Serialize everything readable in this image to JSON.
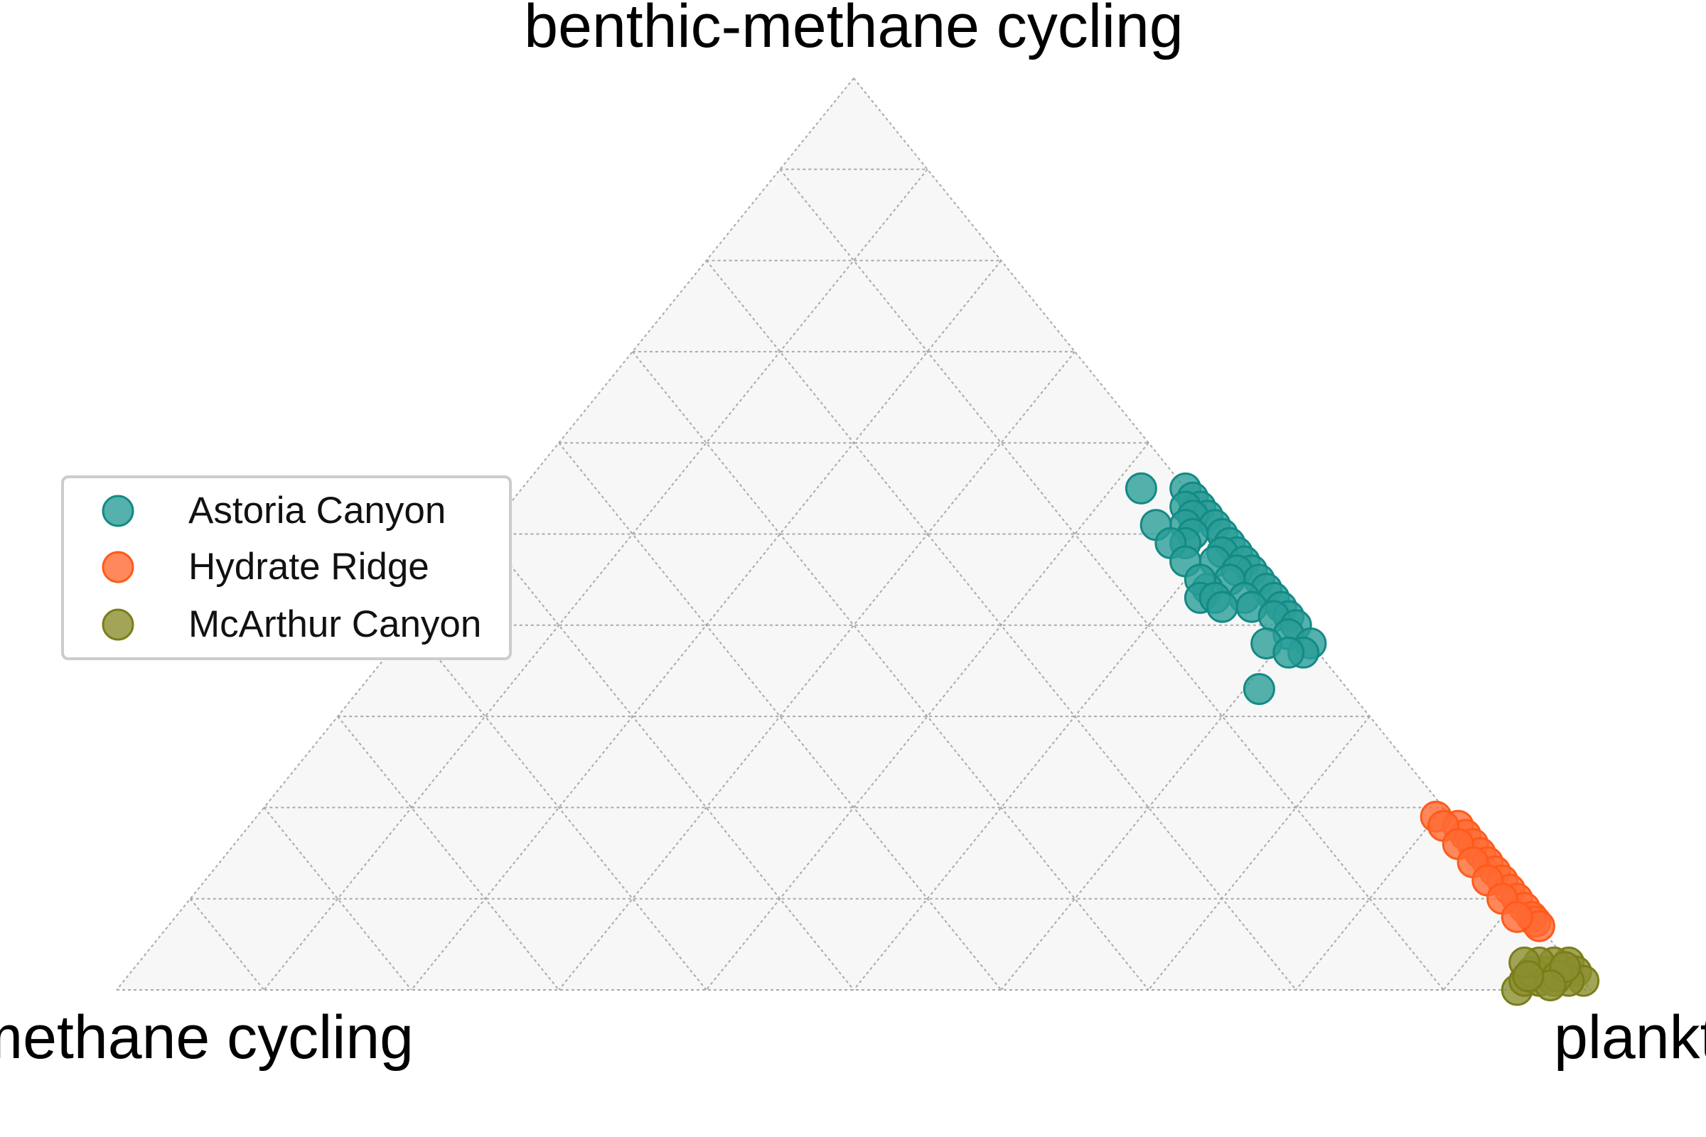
{
  "chart_data": {
    "type": "scatter",
    "subtype": "ternary",
    "vertices": {
      "top": "benthic-methane cycling",
      "left": "methane cycling",
      "right": "planktonic"
    },
    "grid": true,
    "grid_step": 0.1,
    "legend_placement": "center-left",
    "series": [
      {
        "name": "Astoria Canyon",
        "color": "#2a9d97",
        "edge_color": "#138a85",
        "points": [
          {
            "top": 0.55,
            "left": 0.03,
            "right": 0.42
          },
          {
            "top": 0.55,
            "left": 0.0,
            "right": 0.45
          },
          {
            "top": 0.54,
            "left": 0.0,
            "right": 0.46
          },
          {
            "top": 0.53,
            "left": 0.0,
            "right": 0.47
          },
          {
            "top": 0.53,
            "left": 0.01,
            "right": 0.46
          },
          {
            "top": 0.52,
            "left": 0.0,
            "right": 0.48
          },
          {
            "top": 0.52,
            "left": 0.01,
            "right": 0.47
          },
          {
            "top": 0.51,
            "left": 0.0,
            "right": 0.49
          },
          {
            "top": 0.51,
            "left": 0.02,
            "right": 0.47
          },
          {
            "top": 0.5,
            "left": 0.0,
            "right": 0.5
          },
          {
            "top": 0.5,
            "left": 0.02,
            "right": 0.48
          },
          {
            "top": 0.49,
            "left": 0.0,
            "right": 0.51
          },
          {
            "top": 0.49,
            "left": 0.03,
            "right": 0.48
          },
          {
            "top": 0.48,
            "left": 0.0,
            "right": 0.52
          },
          {
            "top": 0.48,
            "left": 0.01,
            "right": 0.51
          },
          {
            "top": 0.47,
            "left": 0.0,
            "right": 0.53
          },
          {
            "top": 0.47,
            "left": 0.02,
            "right": 0.51
          },
          {
            "top": 0.46,
            "left": 0.0,
            "right": 0.54
          },
          {
            "top": 0.46,
            "left": 0.01,
            "right": 0.53
          },
          {
            "top": 0.45,
            "left": 0.0,
            "right": 0.55
          },
          {
            "top": 0.45,
            "left": 0.02,
            "right": 0.53
          },
          {
            "top": 0.44,
            "left": 0.0,
            "right": 0.56
          },
          {
            "top": 0.44,
            "left": 0.04,
            "right": 0.52
          },
          {
            "top": 0.43,
            "left": 0.0,
            "right": 0.57
          },
          {
            "top": 0.43,
            "left": 0.02,
            "right": 0.55
          },
          {
            "top": 0.42,
            "left": 0.0,
            "right": 0.58
          },
          {
            "top": 0.42,
            "left": 0.02,
            "right": 0.56
          },
          {
            "top": 0.41,
            "left": 0.0,
            "right": 0.59
          },
          {
            "top": 0.41,
            "left": 0.01,
            "right": 0.58
          },
          {
            "top": 0.4,
            "left": 0.0,
            "right": 0.6
          },
          {
            "top": 0.39,
            "left": 0.01,
            "right": 0.6
          },
          {
            "top": 0.38,
            "left": 0.0,
            "right": 0.62
          },
          {
            "top": 0.37,
            "left": 0.01,
            "right": 0.62
          },
          {
            "top": 0.51,
            "left": 0.04,
            "right": 0.45
          },
          {
            "top": 0.49,
            "left": 0.04,
            "right": 0.47
          },
          {
            "top": 0.47,
            "left": 0.04,
            "right": 0.49
          },
          {
            "top": 0.45,
            "left": 0.04,
            "right": 0.51
          },
          {
            "top": 0.43,
            "left": 0.05,
            "right": 0.52
          },
          {
            "top": 0.43,
            "left": 0.04,
            "right": 0.53
          },
          {
            "top": 0.42,
            "left": 0.04,
            "right": 0.54
          },
          {
            "top": 0.38,
            "left": 0.03,
            "right": 0.59
          },
          {
            "top": 0.37,
            "left": 0.02,
            "right": 0.61
          },
          {
            "top": 0.33,
            "left": 0.06,
            "right": 0.61
          }
        ]
      },
      {
        "name": "Hydrate Ridge",
        "color": "#ff6a33",
        "edge_color": "#ff5a1a",
        "points": [
          {
            "top": 0.19,
            "left": 0.01,
            "right": 0.8
          },
          {
            "top": 0.18,
            "left": 0.0,
            "right": 0.82
          },
          {
            "top": 0.17,
            "left": 0.0,
            "right": 0.83
          },
          {
            "top": 0.16,
            "left": 0.0,
            "right": 0.84
          },
          {
            "top": 0.15,
            "left": 0.0,
            "right": 0.85
          },
          {
            "top": 0.14,
            "left": 0.0,
            "right": 0.86
          },
          {
            "top": 0.13,
            "left": 0.0,
            "right": 0.87
          },
          {
            "top": 0.12,
            "left": 0.0,
            "right": 0.88
          },
          {
            "top": 0.11,
            "left": 0.0,
            "right": 0.89
          },
          {
            "top": 0.1,
            "left": 0.0,
            "right": 0.9
          },
          {
            "top": 0.09,
            "left": 0.0,
            "right": 0.91
          },
          {
            "top": 0.08,
            "left": 0.0,
            "right": 0.92
          },
          {
            "top": 0.075,
            "left": 0.0,
            "right": 0.925
          },
          {
            "top": 0.07,
            "left": 0.0,
            "right": 0.93
          },
          {
            "top": 0.18,
            "left": 0.01,
            "right": 0.81
          },
          {
            "top": 0.16,
            "left": 0.01,
            "right": 0.83
          },
          {
            "top": 0.14,
            "left": 0.01,
            "right": 0.85
          },
          {
            "top": 0.12,
            "left": 0.01,
            "right": 0.87
          },
          {
            "top": 0.1,
            "left": 0.01,
            "right": 0.89
          },
          {
            "top": 0.08,
            "left": 0.01,
            "right": 0.91
          }
        ]
      },
      {
        "name": "McArthur Canyon",
        "color": "#8b8f2e",
        "edge_color": "#7a7e1a",
        "points": [
          {
            "top": 0.0,
            "left": 0.05,
            "right": 0.95
          },
          {
            "top": 0.01,
            "left": 0.04,
            "right": 0.95
          },
          {
            "top": 0.01,
            "left": 0.03,
            "right": 0.96
          },
          {
            "top": 0.02,
            "left": 0.02,
            "right": 0.96
          },
          {
            "top": 0.02,
            "left": 0.01,
            "right": 0.97
          },
          {
            "top": 0.03,
            "left": 0.0,
            "right": 0.97
          },
          {
            "top": 0.03,
            "left": 0.01,
            "right": 0.96
          },
          {
            "top": 0.02,
            "left": 0.0,
            "right": 0.98
          },
          {
            "top": 0.01,
            "left": 0.0,
            "right": 0.99
          },
          {
            "top": 0.01,
            "left": 0.01,
            "right": 0.98
          },
          {
            "top": 0.01,
            "left": 0.02,
            "right": 0.97
          },
          {
            "top": 0.02,
            "left": 0.03,
            "right": 0.95
          },
          {
            "top": 0.03,
            "left": 0.02,
            "right": 0.95
          },
          {
            "top": 0.03,
            "left": 0.03,
            "right": 0.94
          },
          {
            "top": 0.015,
            "left": 0.015,
            "right": 0.97
          },
          {
            "top": 0.025,
            "left": 0.005,
            "right": 0.97
          },
          {
            "top": 0.005,
            "left": 0.025,
            "right": 0.97
          },
          {
            "top": 0.015,
            "left": 0.035,
            "right": 0.95
          }
        ]
      }
    ]
  }
}
